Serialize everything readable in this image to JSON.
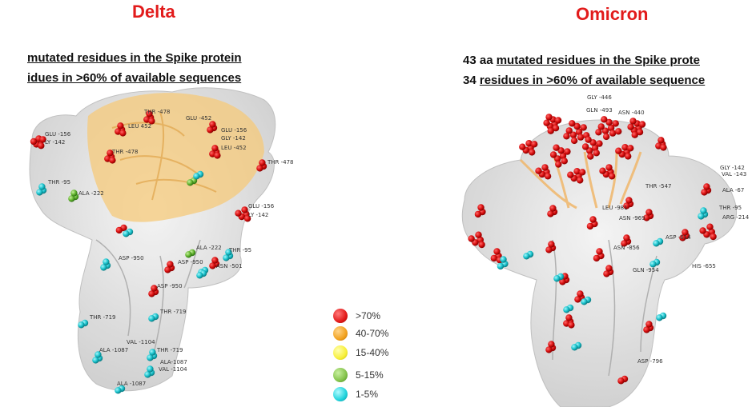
{
  "panels": {
    "delta": {
      "title": "Delta",
      "line1_plain": "",
      "line1_underlined": "mutated residues in the Spike protein",
      "line2_underlined": "idues in >60% of available sequences"
    },
    "omicron": {
      "title": "Omicron",
      "line1_plain": "43 aa ",
      "line1_underlined": "mutated residues in the Spike prote",
      "line2_plain": "34 ",
      "line2_underlined": "residues in >60% of available sequence"
    }
  },
  "legend": [
    {
      "label": ">70%",
      "color": "#e31a1a"
    },
    {
      "label": "40-70%",
      "color": "#f2a21f"
    },
    {
      "label": "15-40%",
      "color": "#f7ef3a"
    },
    {
      "label": "5-15%",
      "color": "#84c34a"
    },
    {
      "label": "1-5%",
      "color": "#1fd3dc"
    }
  ],
  "residue_labels": {
    "delta": [
      "THR -478",
      "LEU 452",
      "GLU -452",
      "GLU -156",
      "LY -142",
      "GLU -156",
      "GLY -142",
      "LEU -452",
      "THR -478",
      "THR -478",
      "THR -95",
      "ALA -222",
      "GLU -156",
      "LY -142",
      "ALA -222",
      "THR -95",
      "ASP -950",
      "ASP -950",
      "ASN -501",
      "ASP -950",
      "THR -719",
      "THR -719",
      "VAL -1104",
      "ALA -1087",
      "THR -719",
      "ALA-1087",
      "VAL -1104",
      "ALA -1087"
    ],
    "omicron": [
      "GLY -446",
      "GLN -493",
      "ASN -440",
      "THR -547",
      "LEU -981",
      "ASN -969",
      "ASN -856",
      "ASP -614",
      "GLN -954",
      "HIS -655",
      "ASP -796",
      "GLY -142",
      "VAL -143",
      "ALA -67",
      "THR -95",
      "ARG -214"
    ]
  }
}
